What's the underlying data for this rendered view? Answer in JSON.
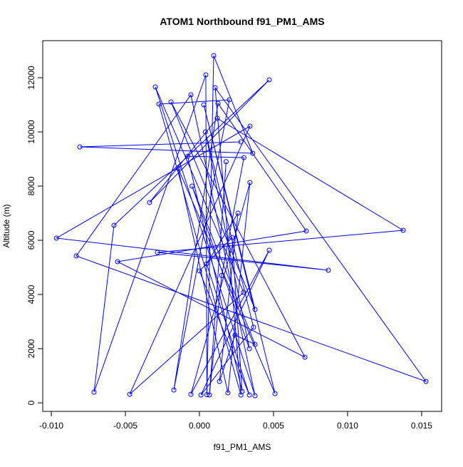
{
  "chart_data": {
    "type": "line",
    "title": "ATOM1 Northbound f91_PM1_AMS",
    "x_label": "f91_PM1_AMS",
    "y_label": "Altitude (m)",
    "x": [
      0.0028,
      -0.00808,
      0.0036,
      0.00096,
      0.0005,
      0.00043,
      -0.00712,
      -0.00577,
      0.00471,
      -0.00337,
      0.0012,
      0.01375,
      -0.00284,
      0.0087,
      -0.00966,
      0.00341,
      -0.00471,
      0.00298,
      -0.00298,
      0.00375,
      -0.00058,
      -0.00832,
      0.01529,
      0.00106,
      0.0028,
      -0.00274,
      0.00202,
      -0.00173,
      0.00125,
      0.00721,
      -0.00553,
      0.00712,
      -0.00192,
      0.00375,
      0.00029,
      0.0051,
      -0.00144,
      0.00192,
      0.00341,
      -0.00058,
      0.00471,
      0.0001,
      0.00365,
      0.0004,
      0.00337,
      -0.0005,
      0.00375,
      0.0024,
      0.00135,
      0.0026,
      0.00048,
      0.00337,
      0,
      0.0022,
      0.00288,
      -0.0008,
      0.003,
      0.0015,
      0.00067,
      0.0018
    ],
    "series": [
      {
        "name": "f91_PM1_AMS",
        "color": "#0000ff",
        "values": [
          9632,
          9447,
          9210,
          12816,
          300,
          12105,
          395,
          6553,
          11921,
          7395,
          10500,
          6368,
          5553,
          4895,
          6079,
          10210,
          316,
          4079,
          11658,
          263,
          11368,
          5421,
          789,
          11632,
          289,
          11026,
          11184,
          474,
          11053,
          6342,
          5211,
          1684,
          11105,
          3447,
          11000,
          342,
          8658,
          368,
          8132,
          316,
          5632,
          289,
          2789,
          10000,
          2000,
          8000,
          2158,
          2500,
          789,
          7000,
          5132,
          289,
          4868,
          6100,
          421,
          9100,
          9050,
          4700,
          289,
          8900
        ]
      }
    ],
    "xlim": [
      -0.01058,
      0.01635
    ],
    "ylim": [
      -316,
      13368
    ],
    "xticks": [
      {
        "value": -0.01,
        "label": "-0.010"
      },
      {
        "value": -0.005,
        "label": "-0.005"
      },
      {
        "value": 0,
        "label": "0.000"
      },
      {
        "value": 0.005,
        "label": "0.005"
      },
      {
        "value": 0.01,
        "label": "0.010"
      },
      {
        "value": 0.015,
        "label": "0.015"
      }
    ],
    "yticks": [
      0,
      2000,
      4000,
      6000,
      8000,
      10000,
      12000
    ]
  }
}
